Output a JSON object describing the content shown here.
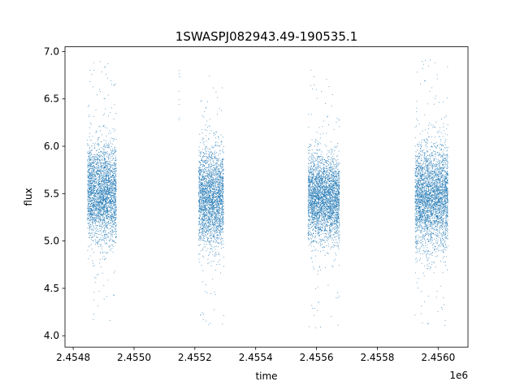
{
  "chart_data": {
    "type": "scatter",
    "title": "1SWASPJ082943.49-190535.1",
    "xlabel": "time",
    "ylabel": "flux",
    "x_offset_label": "1e6",
    "xlim": [
      2454773,
      2456098
    ],
    "ylim": [
      3.88,
      7.05
    ],
    "x_ticks": [
      2454800,
      2455000,
      2455200,
      2455400,
      2455600,
      2455800,
      2456000
    ],
    "x_tick_labels": [
      "2.4548",
      "2.4550",
      "2.4552",
      "2.4554",
      "2.4556",
      "2.4558",
      "2.4560"
    ],
    "y_ticks": [
      4.0,
      4.5,
      5.0,
      5.5,
      6.0,
      6.5,
      7.0
    ],
    "y_tick_labels": [
      "4.0",
      "4.5",
      "5.0",
      "5.5",
      "6.0",
      "6.5",
      "7.0"
    ],
    "grid": false,
    "marker_color": "#1f77b4",
    "series": [
      {
        "name": "",
        "point_count_estimate": 12000,
        "observing_seasons": [
          {
            "x_range": [
              2454847,
              2454942
            ],
            "flux_core": [
              5.1,
              5.9
            ],
            "flux_extent": [
              4.05,
              6.9
            ]
          },
          {
            "x_range": [
              2455145,
              2455150
            ],
            "flux_core": [
              6.2,
              6.8
            ],
            "flux_extent": [
              6.15,
              6.8
            ]
          },
          {
            "x_range": [
              2455212,
              2455295
            ],
            "flux_core": [
              5.05,
              5.85
            ],
            "flux_extent": [
              4.1,
              6.75
            ]
          },
          {
            "x_range": [
              2455572,
              2455676
            ],
            "flux_core": [
              5.1,
              5.8
            ],
            "flux_extent": [
              4.05,
              6.85
            ]
          },
          {
            "x_range": [
              2455924,
              2456032
            ],
            "flux_core": [
              5.05,
              5.9
            ],
            "flux_extent": [
              4.05,
              6.93
            ]
          }
        ]
      }
    ]
  }
}
